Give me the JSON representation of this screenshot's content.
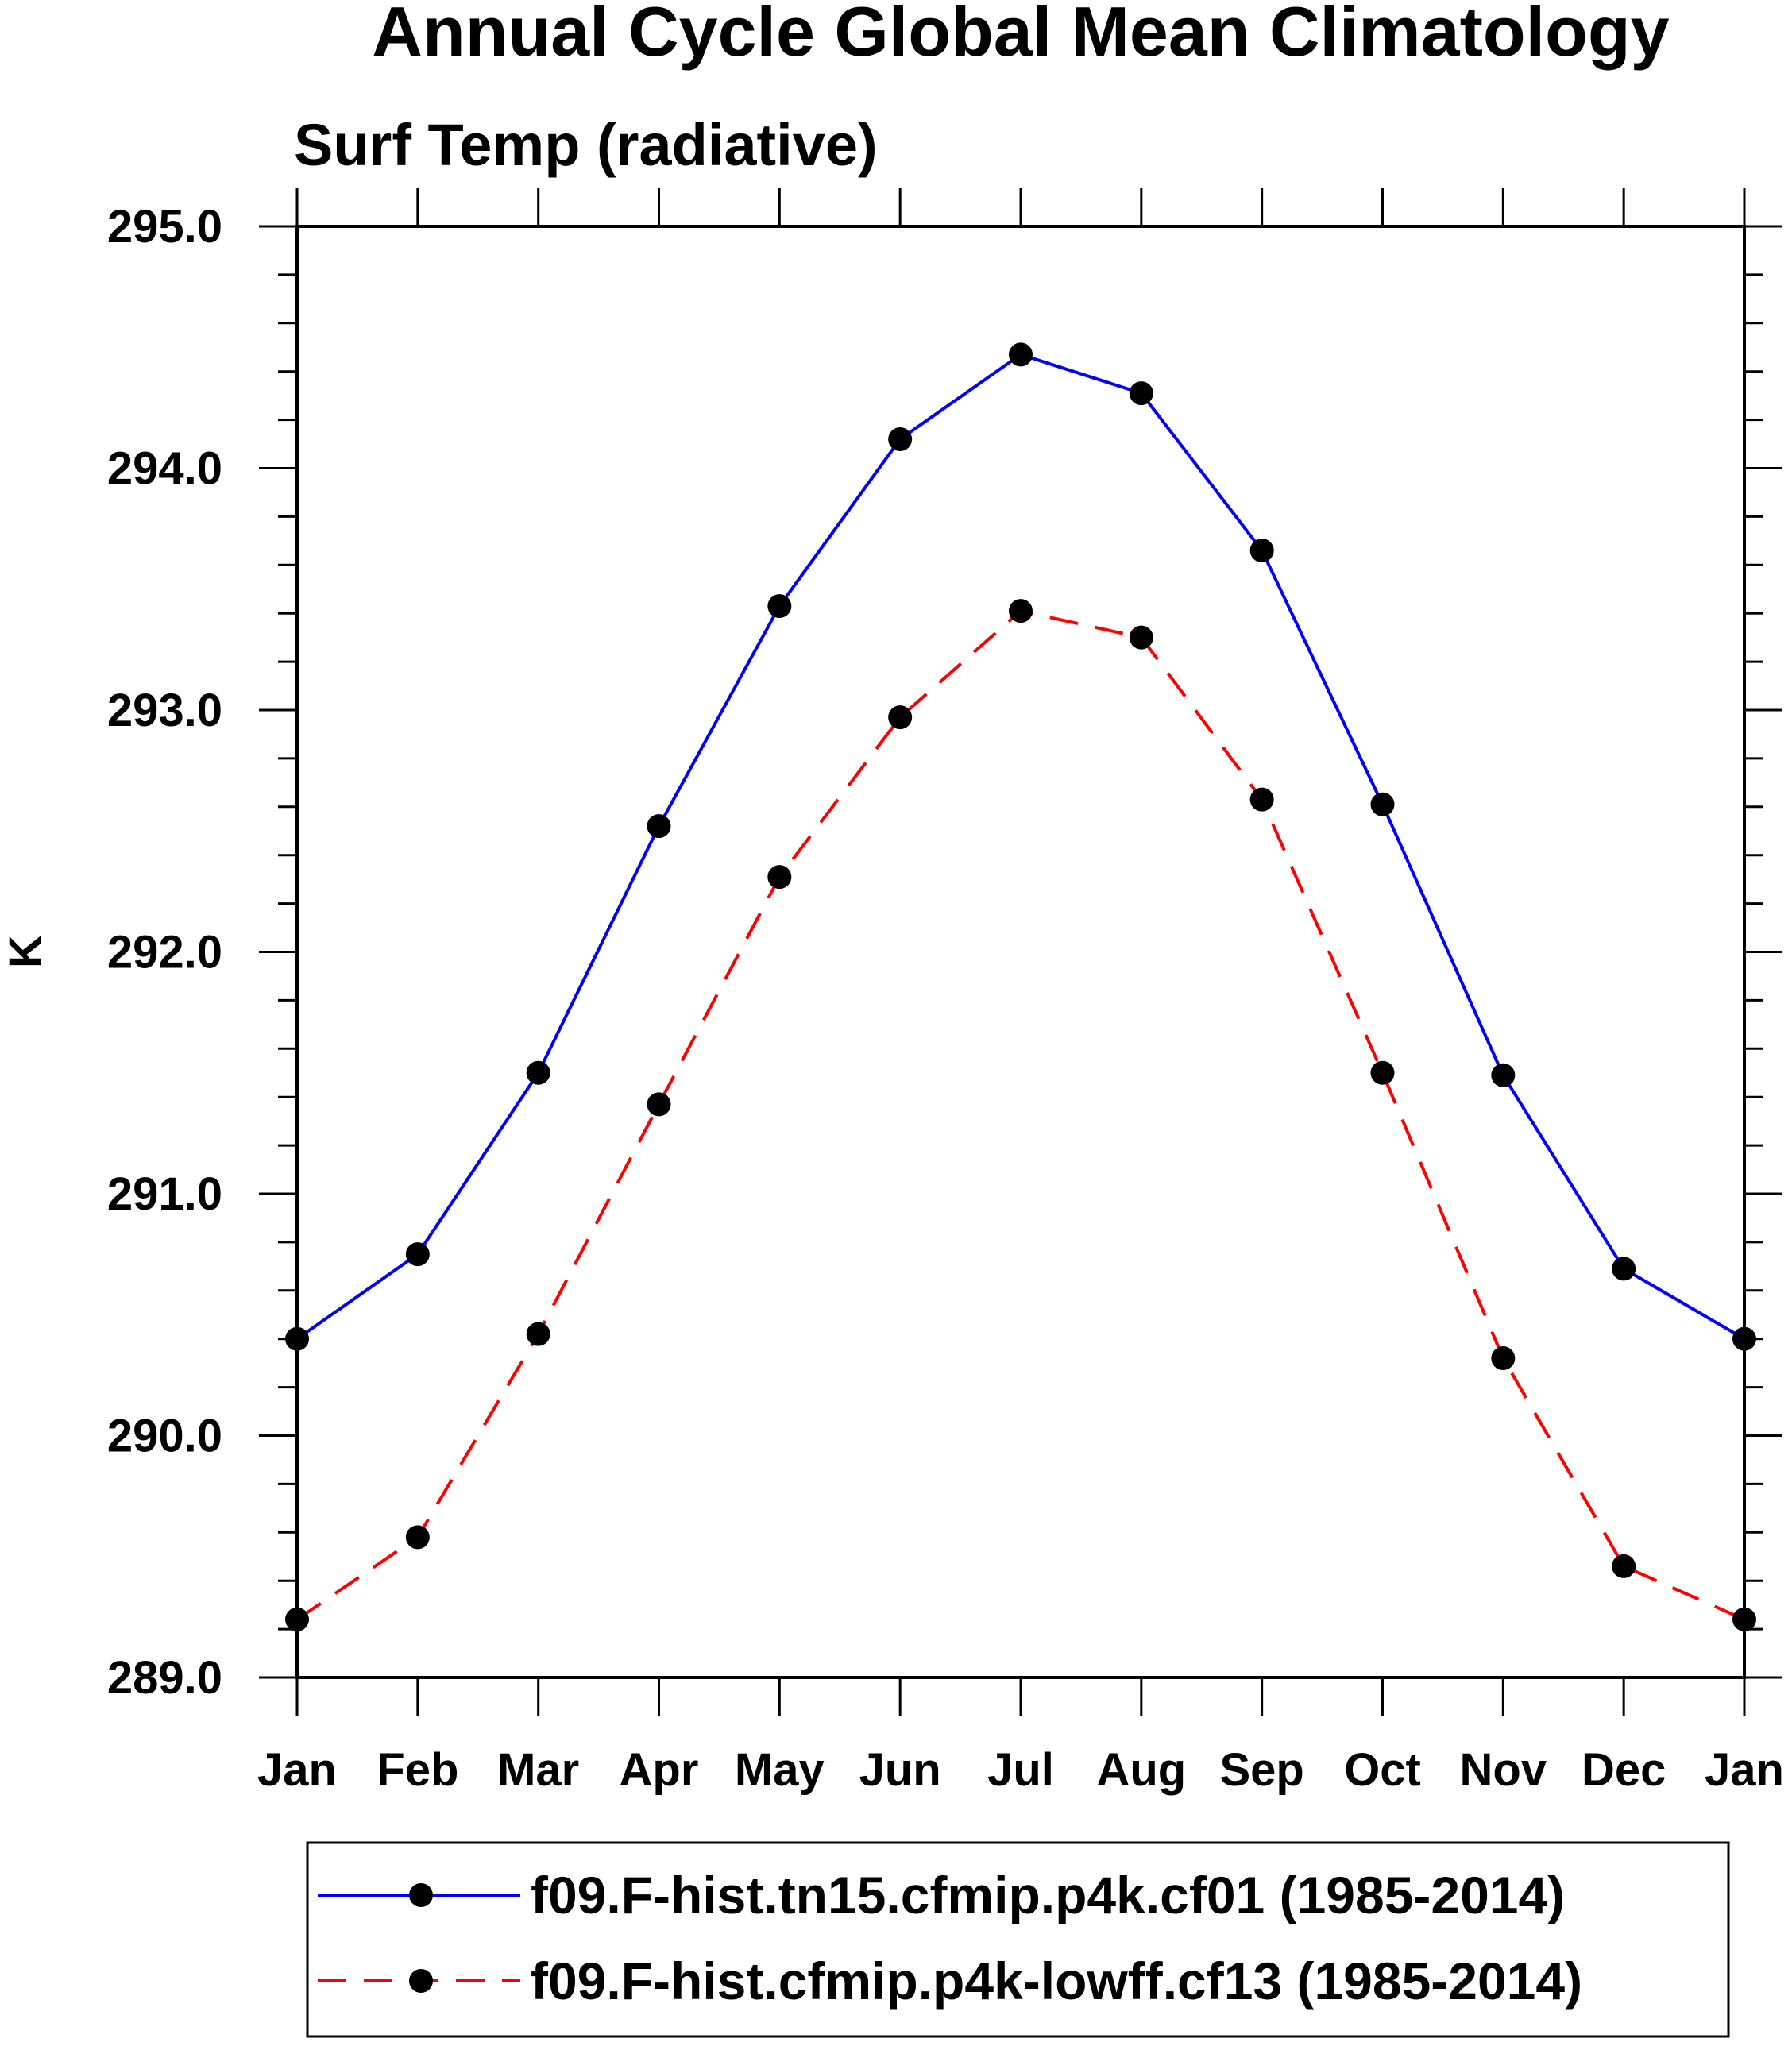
{
  "chart_data": {
    "type": "line",
    "title": "Annual Cycle Global Mean Climatology",
    "subtitle": "Surf Temp (radiative)",
    "xlabel": "",
    "ylabel": "K",
    "categories": [
      "Jan",
      "Feb",
      "Mar",
      "Apr",
      "May",
      "Jun",
      "Jul",
      "Aug",
      "Sep",
      "Oct",
      "Nov",
      "Dec",
      "Jan"
    ],
    "ylim": [
      289.0,
      295.0
    ],
    "yticks": [
      "289.0",
      "290.0",
      "291.0",
      "292.0",
      "293.0",
      "294.0",
      "295.0"
    ],
    "grid": false,
    "legend_position": "bottom",
    "series": [
      {
        "name": "f09.F-hist.tn15.cfmip.p4k.cf01 (1985-2014)",
        "color": "#0000ff",
        "line_style": "solid",
        "marker": "filled-circle",
        "values": [
          290.4,
          290.75,
          291.5,
          292.52,
          293.43,
          294.12,
          294.47,
          294.31,
          293.66,
          292.61,
          291.49,
          290.69,
          290.4
        ]
      },
      {
        "name": "f09.F-hist.cfmip.p4k-lowff.cf13 (1985-2014)",
        "color": "#ff0000",
        "line_style": "dashed",
        "marker": "filled-circle",
        "values": [
          289.24,
          289.58,
          290.42,
          291.37,
          292.31,
          292.97,
          293.41,
          293.3,
          292.63,
          291.5,
          290.32,
          289.46,
          289.24
        ]
      }
    ]
  }
}
